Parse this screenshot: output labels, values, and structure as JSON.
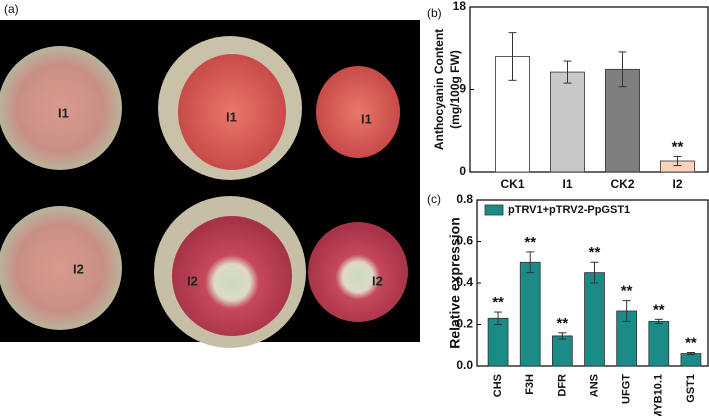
{
  "photo": {
    "panel_label": "(a)",
    "fruit_labels": [
      "I1",
      "I1",
      "I1",
      "I2",
      "I2",
      "I2"
    ]
  },
  "chart_data": [
    {
      "type": "bar",
      "panel_label": "(b)",
      "ylabel": [
        "Anthocyanin Content",
        "(mg/100g FW)"
      ],
      "categories": [
        "CK1",
        "I1",
        "CK2",
        "I2"
      ],
      "values": [
        12.6,
        10.9,
        11.2,
        1.2
      ],
      "errors": [
        2.6,
        1.2,
        1.9,
        0.5
      ],
      "colors": [
        "#ffffff",
        "#c8c8c8",
        "#7f7f7f",
        "#fbd3b9"
      ],
      "annotations": [
        null,
        null,
        null,
        "**"
      ],
      "ylim": [
        0,
        18
      ],
      "yticks": [
        0,
        9,
        18
      ]
    },
    {
      "type": "bar",
      "panel_label": "(c)",
      "ylabel": "Relative expression",
      "legend": "pTRV1+pTRV2-PpGST1",
      "legend_position": "upper-left",
      "color": "#1b8b87",
      "categories": [
        "CHS",
        "F3H",
        "DFR",
        "ANS",
        "UFGT",
        "MYB10.1",
        "GST1"
      ],
      "values": [
        0.23,
        0.5,
        0.145,
        0.45,
        0.265,
        0.215,
        0.06
      ],
      "errors": [
        0.03,
        0.05,
        0.015,
        0.05,
        0.05,
        0.01,
        0.005
      ],
      "annotations": [
        "**",
        "**",
        "**",
        "**",
        "**",
        "**",
        "**"
      ],
      "ylim": [
        0,
        0.8
      ],
      "yticks": [
        {
          "value": 0,
          "label": "0.0"
        },
        0.2,
        0.4,
        0.6,
        0.8
      ]
    }
  ]
}
